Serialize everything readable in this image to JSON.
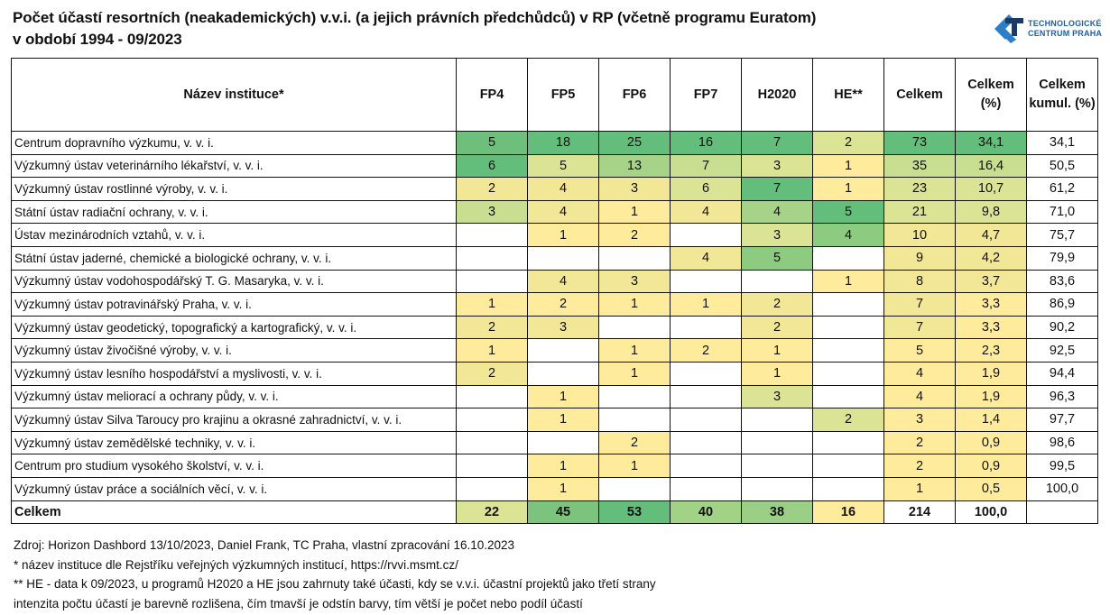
{
  "header": {
    "title_line1": "Počet účastí resortních (neakademických) v.v.i. (a jejich právních předchůdců) v RP (včetně programu Euratom)",
    "title_line2": "v období 1994 - 09/2023",
    "logo_line1": "TECHNOLOGICKÉ",
    "logo_line2": "CENTRUM PRAHA",
    "logo_icon": "tc-praha-logo-icon"
  },
  "colors": {
    "brand_blue": "#1f5fa8",
    "brand_dark": "#1a3a6a",
    "scale": [
      "#ffeb9c",
      "#f2e796",
      "#dbe395",
      "#c8de90",
      "#a7d389",
      "#8dcb81",
      "#6ebf7b",
      "#63be7b"
    ]
  },
  "chart_data": {
    "type": "heatmap",
    "title": "Počet účastí resortních (neakademických) v.v.i. (a jejich právních předchůdců) v RP (včetně programu Euratom) v období 1994 - 09/2023",
    "columns": [
      "Název instituce*",
      "FP4",
      "FP5",
      "FP6",
      "FP7",
      "H2020",
      "HE**",
      "Celkem",
      "Celkem (%)",
      "Celkem kumul. (%)"
    ],
    "rows": [
      {
        "name": "Centrum dopravního výzkumu, v. v. i.",
        "FP4": "5",
        "FP5": "18",
        "FP6": "25",
        "FP7": "16",
        "H2020": "7",
        "HE": "2",
        "celkem": "73",
        "pct": "34,1",
        "cum": "34,1"
      },
      {
        "name": "Výzkumný ústav veterinárního lékařství, v. v. i.",
        "FP4": "6",
        "FP5": "5",
        "FP6": "13",
        "FP7": "7",
        "H2020": "3",
        "HE": "1",
        "celkem": "35",
        "pct": "16,4",
        "cum": "50,5"
      },
      {
        "name": "Výzkumný ústav rostlinné výroby, v. v. i.",
        "FP4": "2",
        "FP5": "4",
        "FP6": "3",
        "FP7": "6",
        "H2020": "7",
        "HE": "1",
        "celkem": "23",
        "pct": "10,7",
        "cum": "61,2"
      },
      {
        "name": "Státní ústav radiační ochrany, v. v. i.",
        "FP4": "3",
        "FP5": "4",
        "FP6": "1",
        "FP7": "4",
        "H2020": "4",
        "HE": "5",
        "celkem": "21",
        "pct": "9,8",
        "cum": "71,0"
      },
      {
        "name": "Ústav mezinárodních vztahů, v. v. i.",
        "FP4": "",
        "FP5": "1",
        "FP6": "2",
        "FP7": "",
        "H2020": "3",
        "HE": "4",
        "celkem": "10",
        "pct": "4,7",
        "cum": "75,7"
      },
      {
        "name": "Státní ústav jaderné, chemické a biologické ochrany, v. v. i.",
        "FP4": "",
        "FP5": "",
        "FP6": "",
        "FP7": "4",
        "H2020": "5",
        "HE": "",
        "celkem": "9",
        "pct": "4,2",
        "cum": "79,9"
      },
      {
        "name": "Výzkumný ústav vodohospodářský T. G. Masaryka, v. v. i.",
        "FP4": "",
        "FP5": "4",
        "FP6": "3",
        "FP7": "",
        "H2020": "",
        "HE": "1",
        "celkem": "8",
        "pct": "3,7",
        "cum": "83,6"
      },
      {
        "name": "Výzkumný ústav potravinářský Praha, v. v. i.",
        "FP4": "1",
        "FP5": "2",
        "FP6": "1",
        "FP7": "1",
        "H2020": "2",
        "HE": "",
        "celkem": "7",
        "pct": "3,3",
        "cum": "86,9"
      },
      {
        "name": "Výzkumný ústav geodetický, topografický a kartografický, v. v. i.",
        "FP4": "2",
        "FP5": "3",
        "FP6": "",
        "FP7": "",
        "H2020": "2",
        "HE": "",
        "celkem": "7",
        "pct": "3,3",
        "cum": "90,2"
      },
      {
        "name": "Výzkumný ústav živočišné výroby, v. v. i.",
        "FP4": "1",
        "FP5": "",
        "FP6": "1",
        "FP7": "2",
        "H2020": "1",
        "HE": "",
        "celkem": "5",
        "pct": "2,3",
        "cum": "92,5"
      },
      {
        "name": "Výzkumný ústav lesního hospodářství a myslivosti, v. v. i.",
        "FP4": "2",
        "FP5": "",
        "FP6": "1",
        "FP7": "",
        "H2020": "1",
        "HE": "",
        "celkem": "4",
        "pct": "1,9",
        "cum": "94,4"
      },
      {
        "name": "Výzkumný ústav meliorací a ochrany půdy, v. v. i.",
        "FP4": "",
        "FP5": "1",
        "FP6": "",
        "FP7": "",
        "H2020": "3",
        "HE": "",
        "celkem": "4",
        "pct": "1,9",
        "cum": "96,3"
      },
      {
        "name": "Výzkumný ústav Silva Taroucy pro krajinu a okrasné zahradnictví, v. v. i.",
        "FP4": "",
        "FP5": "1",
        "FP6": "",
        "FP7": "",
        "H2020": "",
        "HE": "2",
        "celkem": "3",
        "pct": "1,4",
        "cum": "97,7"
      },
      {
        "name": "Výzkumný ústav zemědělské techniky, v. v. i.",
        "FP4": "",
        "FP5": "",
        "FP6": "2",
        "FP7": "",
        "H2020": "",
        "HE": "",
        "celkem": "2",
        "pct": "0,9",
        "cum": "98,6"
      },
      {
        "name": "Centrum pro studium vysokého školství, v. v. i.",
        "FP4": "",
        "FP5": "1",
        "FP6": "1",
        "FP7": "",
        "H2020": "",
        "HE": "",
        "celkem": "2",
        "pct": "0,9",
        "cum": "99,5"
      },
      {
        "name": "Výzkumný ústav práce a sociálních věcí, v. v. i.",
        "FP4": "",
        "FP5": "1",
        "FP6": "",
        "FP7": "",
        "H2020": "",
        "HE": "",
        "celkem": "1",
        "pct": "0,5",
        "cum": "100,0"
      }
    ],
    "total": {
      "name": "Celkem",
      "FP4": "22",
      "FP5": "45",
      "FP6": "53",
      "FP7": "40",
      "H2020": "38",
      "HE": "16",
      "celkem": "214",
      "pct": "100,0",
      "cum": ""
    },
    "color_scale": "yellow (low) to green (high), per column",
    "uncolored_columns": [
      "Celkem kumul. (%)"
    ]
  },
  "footer": {
    "source": "Zdroj: Horizon Dashbord 13/10/2023, Daniel Frank, TC Praha, vlastní zpracování 16.10.2023",
    "note1": "* název instituce dle  Rejstříku veřejných výzkumných institucí, https://rvvi.msmt.cz/",
    "note2": "** HE - data k 09/2023, u programů H2020 a HE jsou zahrnuty také účasti, kdy se v.v.i. účastní projektů jako třetí strany",
    "note3": "intenzita počtu účastí je barevně rozlišena, čím tmavší je odstín barvy, tím větší je počet nebo podíl účastí"
  }
}
